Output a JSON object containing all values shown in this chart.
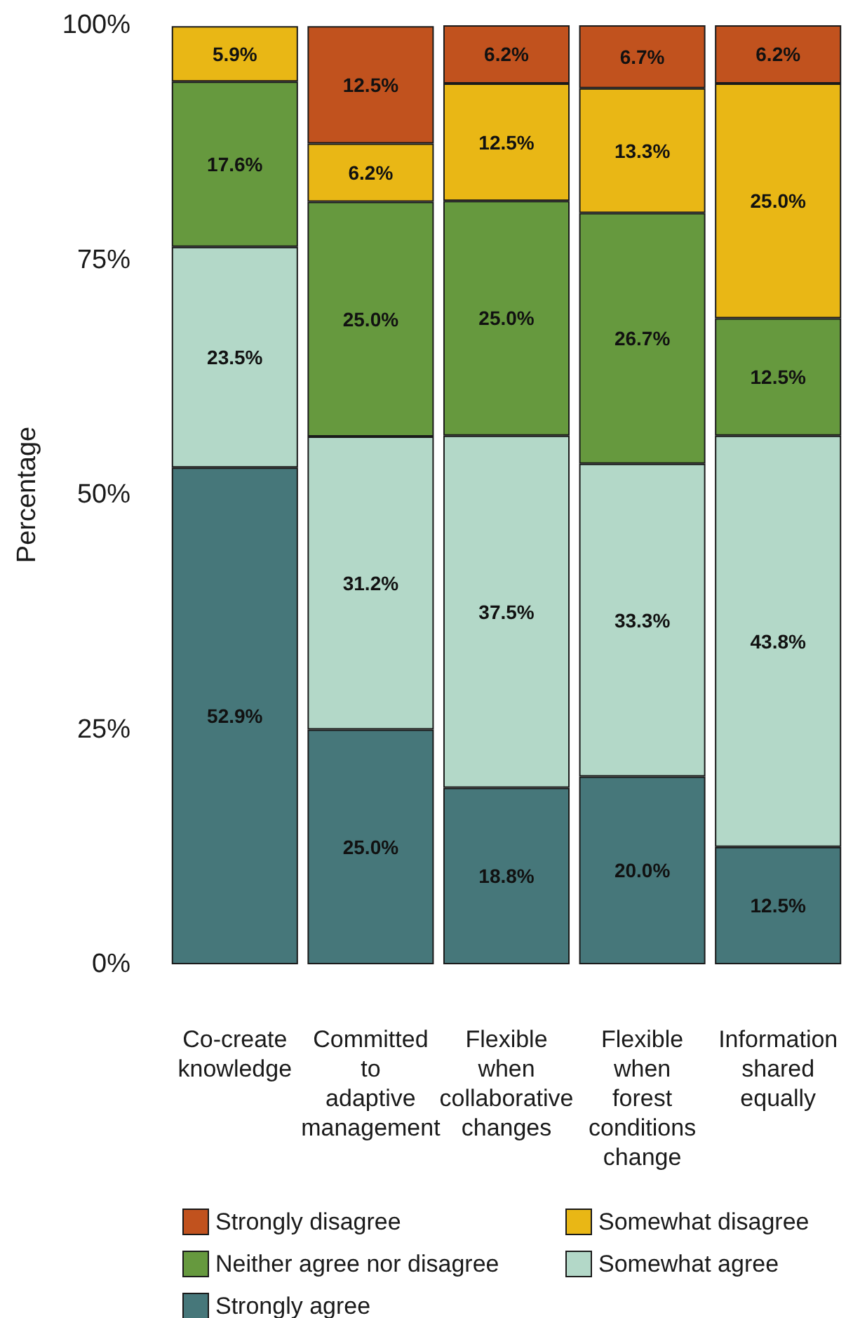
{
  "chart_data": {
    "type": "bar",
    "stacked": true,
    "ylabel": "Percentage",
    "categories": [
      "Co-create knowledge",
      "Committed to adaptive management",
      "Flexible when collaborative changes",
      "Flexible when forest conditions change",
      "Information shared equally"
    ],
    "series": [
      {
        "name": "Strongly agree",
        "color": "#46777a",
        "values": [
          52.9,
          25.0,
          18.8,
          20.0,
          12.5
        ],
        "value_labels": [
          "52.9%",
          "25.0%",
          "18.8%",
          "20.0%",
          "12.5%"
        ]
      },
      {
        "name": "Somewhat agree",
        "color": "#b3d8c8",
        "values": [
          23.5,
          31.2,
          37.5,
          33.3,
          43.8
        ],
        "value_labels": [
          "23.5%",
          "31.2%",
          "37.5%",
          "33.3%",
          "43.8%"
        ]
      },
      {
        "name": "Neither agree nor disagree",
        "color": "#66993e",
        "values": [
          17.6,
          25.0,
          25.0,
          26.7,
          12.5
        ],
        "value_labels": [
          "17.6%",
          "25.0%",
          "25.0%",
          "26.7%",
          "12.5%"
        ]
      },
      {
        "name": "Somewhat disagree",
        "color": "#e9b715",
        "values": [
          5.9,
          6.2,
          12.5,
          13.3,
          25.0
        ],
        "value_labels": [
          "5.9%",
          "6.2%",
          "12.5%",
          "13.3%",
          "25.0%"
        ]
      },
      {
        "name": "Strongly disagree",
        "color": "#c1521e",
        "values": [
          null,
          12.5,
          6.2,
          6.7,
          6.2
        ],
        "value_labels": [
          null,
          "12.5%",
          "6.2%",
          "6.7%",
          "6.2%"
        ]
      }
    ],
    "ylim": [
      0,
      100
    ],
    "yticks": [
      {
        "value": 0,
        "label": "0%"
      },
      {
        "value": 25,
        "label": "25%"
      },
      {
        "value": 50,
        "label": "50%"
      },
      {
        "value": 75,
        "label": "75%"
      },
      {
        "value": 100,
        "label": "100%"
      }
    ],
    "grid": false,
    "legend": "bottom"
  }
}
